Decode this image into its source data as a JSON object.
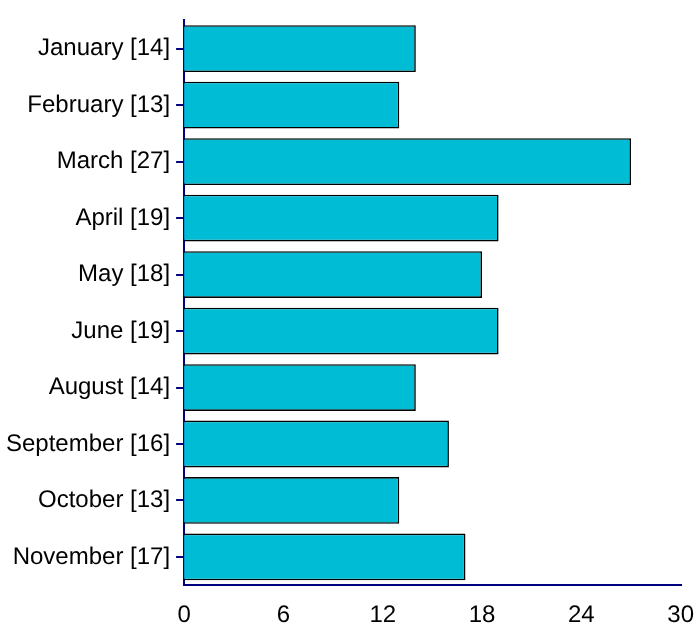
{
  "chart_data": {
    "type": "bar",
    "orientation": "horizontal",
    "categories": [
      "January [14]",
      "February [13]",
      "March [27]",
      "April [19]",
      "May [18]",
      "June [19]",
      "August [14]",
      "September [16]",
      "October [13]",
      "November [17]"
    ],
    "values": [
      14,
      13,
      27,
      19,
      18,
      19,
      14,
      16,
      13,
      17
    ],
    "color": "#00bcd4",
    "xlim": [
      0,
      30
    ],
    "xticks": [
      0,
      6,
      12,
      18,
      24,
      30
    ],
    "grid": false,
    "legend": false
  }
}
